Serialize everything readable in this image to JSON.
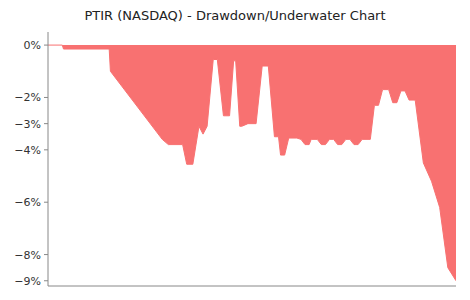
{
  "chart_data": {
    "type": "area",
    "title": "PTIR (NASDAQ) - Drawdown/Underwater Chart",
    "x": [
      0.0,
      0.035,
      0.038,
      0.15,
      0.153,
      0.28,
      0.295,
      0.33,
      0.34,
      0.355,
      0.37,
      0.38,
      0.39,
      0.405,
      0.415,
      0.43,
      0.445,
      0.455,
      0.46,
      0.47,
      0.475,
      0.49,
      0.51,
      0.525,
      0.54,
      0.555,
      0.565,
      0.57,
      0.58,
      0.59,
      0.61,
      0.62,
      0.63,
      0.64,
      0.645,
      0.66,
      0.67,
      0.68,
      0.69,
      0.7,
      0.71,
      0.72,
      0.73,
      0.74,
      0.75,
      0.76,
      0.77,
      0.79,
      0.8,
      0.81,
      0.82,
      0.835,
      0.845,
      0.855,
      0.865,
      0.875,
      0.885,
      0.9,
      0.92,
      0.94,
      0.96,
      0.98,
      1.0
    ],
    "values": [
      0.0,
      0.0,
      -0.15,
      -0.15,
      -1.0,
      -3.6,
      -3.8,
      -3.8,
      -4.55,
      -4.55,
      -3.1,
      -3.4,
      -3.1,
      -0.55,
      -0.55,
      -2.7,
      -2.7,
      -0.6,
      -0.6,
      -3.1,
      -3.1,
      -3.0,
      -3.0,
      -0.8,
      -0.8,
      -3.5,
      -3.5,
      -4.2,
      -4.2,
      -3.55,
      -3.55,
      -3.6,
      -3.8,
      -3.8,
      -3.6,
      -3.6,
      -3.8,
      -3.8,
      -3.6,
      -3.6,
      -3.8,
      -3.8,
      -3.6,
      -3.6,
      -3.8,
      -3.8,
      -3.6,
      -3.6,
      -2.3,
      -2.3,
      -1.7,
      -1.7,
      -2.2,
      -2.2,
      -1.75,
      -1.75,
      -2.1,
      -2.1,
      -4.5,
      -5.2,
      -6.2,
      -8.5,
      -9.0
    ],
    "color": "#f87171",
    "xlim": [
      0,
      1
    ],
    "xticks": [],
    "ylim": [
      -9.2,
      0.5
    ],
    "yticks": [
      {
        "value": 0,
        "label": "0%"
      },
      {
        "value": -2,
        "label": "−2%"
      },
      {
        "value": -3,
        "label": "−3%"
      },
      {
        "value": -4,
        "label": "−4%"
      },
      {
        "value": -6,
        "label": "−6%"
      },
      {
        "value": -8,
        "label": "−8%"
      },
      {
        "value": -9,
        "label": "−9%"
      }
    ],
    "grid": false,
    "tick_labels": "y"
  }
}
